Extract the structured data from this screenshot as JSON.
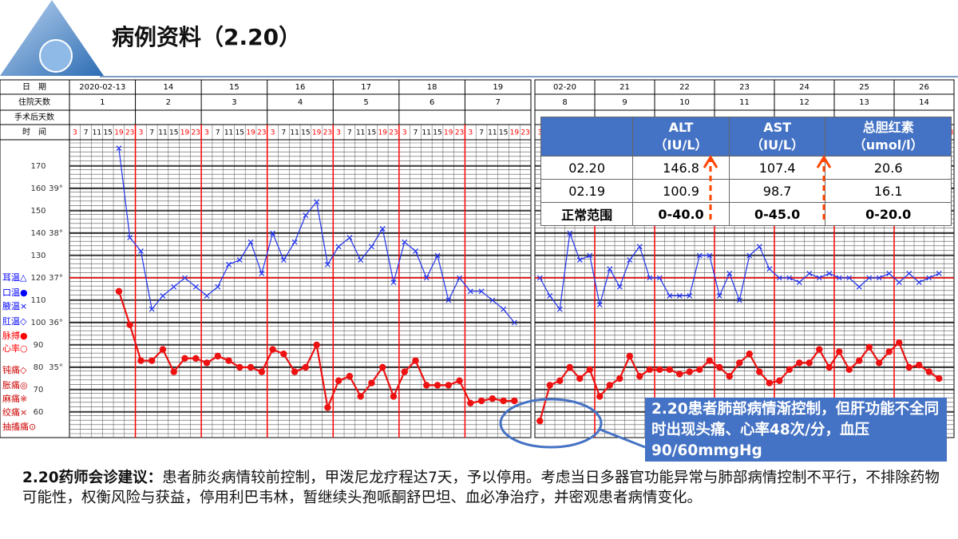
{
  "header": {
    "title": "病例资料（2.20）"
  },
  "vitals": {
    "row_labels": [
      "日　期",
      "住院天数",
      "手术后天数",
      "时　间"
    ],
    "time_slots": [
      "3",
      "7",
      "11",
      "15",
      "19",
      "23"
    ],
    "pulse_ticks": [
      60,
      70,
      80,
      90,
      100,
      110,
      120,
      130,
      140,
      150,
      160,
      170
    ],
    "temp_ticks": [
      {
        "value": 35,
        "label": "35°"
      },
      {
        "value": 36,
        "label": "36°"
      },
      {
        "value": 37,
        "label": "37°"
      },
      {
        "value": 38,
        "label": "38°"
      },
      {
        "value": 39,
        "label": "39°"
      }
    ],
    "legend": [
      "耳温△",
      "口温●",
      "腋温×",
      "肛温◇",
      "脉搏●",
      "心率○",
      "钝痛◇",
      "胀痛◎",
      "麻痛※",
      "绞痛×",
      "抽搐痛⊙"
    ],
    "panels": [
      {
        "dates": [
          "2020-02-13",
          "14",
          "15",
          "16",
          "17",
          "18",
          "19"
        ],
        "hospital_days": [
          "1",
          "2",
          "3",
          "4",
          "5",
          "6",
          "7"
        ],
        "temperature": [
          null,
          null,
          null,
          null,
          39.9,
          37.9,
          37.6,
          36.3,
          36.6,
          36.8,
          37.0,
          36.8,
          36.6,
          36.8,
          37.3,
          37.4,
          37.8,
          37.1,
          38.0,
          37.4,
          37.8,
          38.4,
          38.7,
          37.3,
          37.7,
          37.9,
          37.4,
          37.7,
          38.1,
          36.9,
          37.8,
          37.6,
          37.0,
          37.5,
          36.5,
          37.0,
          36.7,
          36.7,
          36.5,
          36.3,
          36.0,
          null
        ],
        "pulse": [
          null,
          null,
          null,
          null,
          114,
          99,
          83,
          83,
          88,
          78,
          84,
          84,
          82,
          85,
          83,
          80,
          80,
          78,
          88,
          86,
          78,
          80,
          90,
          62,
          74,
          76,
          67,
          73,
          80,
          67,
          78,
          83,
          72,
          72,
          72,
          74,
          64,
          65,
          66,
          65,
          65,
          null
        ]
      },
      {
        "dates": [
          "02-20",
          "21",
          "22",
          "23",
          "24",
          "25",
          "26"
        ],
        "hospital_days": [
          "8",
          "9",
          "10",
          "11",
          "12",
          "13",
          "14"
        ],
        "temperature": [
          37.0,
          36.6,
          36.3,
          38.0,
          37.4,
          37.5,
          36.4,
          37.2,
          36.8,
          37.4,
          37.7,
          37.0,
          37.0,
          36.6,
          36.6,
          36.6,
          37.5,
          37.5,
          36.6,
          37.1,
          36.5,
          37.5,
          37.7,
          37.2,
          37.0,
          37.0,
          36.9,
          37.1,
          37.0,
          37.1,
          37.0,
          37.0,
          36.8,
          37.0,
          37.0,
          37.1,
          36.9,
          37.1,
          36.9,
          37.0,
          37.1,
          null
        ],
        "pulse": [
          56,
          72,
          74,
          80,
          75,
          79,
          67,
          72,
          75,
          85,
          76,
          79,
          79,
          79,
          77,
          78,
          79,
          83,
          80,
          76,
          82,
          86,
          78,
          73,
          74,
          79,
          82,
          82,
          88,
          80,
          87,
          79,
          83,
          89,
          82,
          87,
          91,
          80,
          81,
          78,
          75,
          null
        ]
      }
    ]
  },
  "lab_table": {
    "columns": [
      {
        "name": "ALT",
        "unit": "（IU/L）"
      },
      {
        "name": "AST",
        "unit": "（IU/L）"
      },
      {
        "name": "总胆红素",
        "unit": "（umol/l）"
      }
    ],
    "rows": [
      [
        "02.20",
        "146.8",
        "107.4",
        "20.6"
      ],
      [
        "02.19",
        "100.9",
        "98.7",
        "16.1"
      ],
      [
        "正常范围",
        "0-40.0",
        "0-45.0",
        "0-20.0"
      ]
    ]
  },
  "callout": "2.20患者肺部病情渐控制，但肝功能不全同时出现头痛、心率48次/分，血压90/60mmgHg",
  "advice": {
    "label": "2.20药师会诊建议：",
    "text": "患者肺炎病情较前控制，甲泼尼龙疗程达7天，予以停用。考虑当日多器官功能异常与肺部病情控制不平行，不排除药物可能性，权衡风险与获益，停用利巴韦林，暂继续头孢哌酮舒巴坦、血必净治疗，并密观患者病情变化。"
  }
}
